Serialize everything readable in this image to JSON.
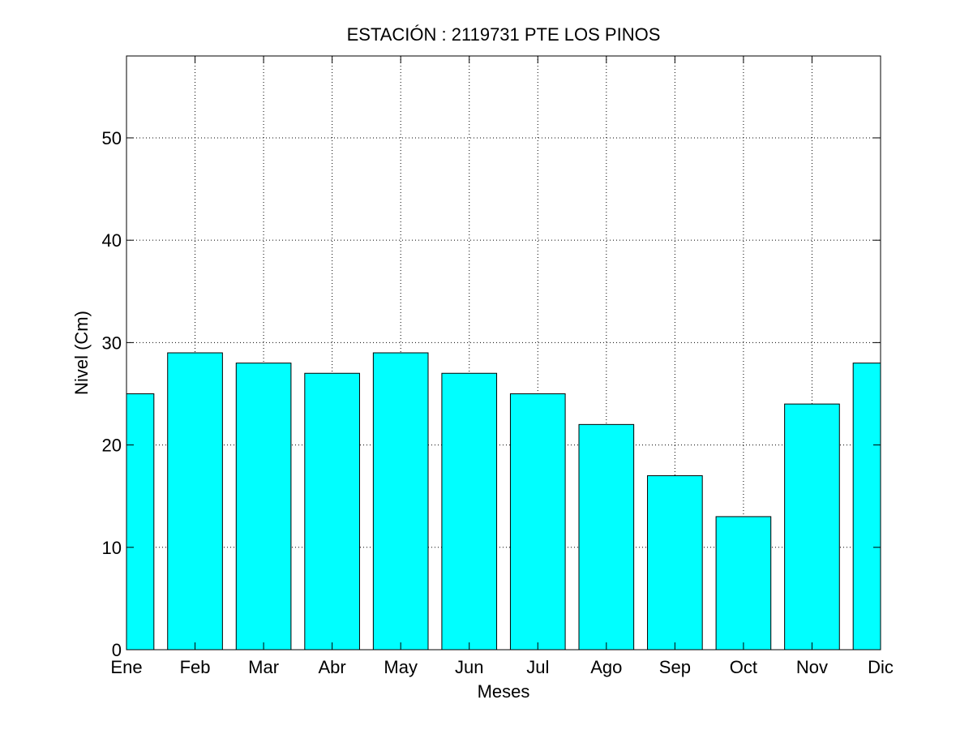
{
  "chart_data": {
    "type": "bar",
    "title": "ESTACIÓN :  2119731  PTE LOS PINOS",
    "xlabel": "Meses",
    "ylabel": "Nivel (Cm)",
    "categories": [
      "Ene",
      "Feb",
      "Mar",
      "Abr",
      "May",
      "Jun",
      "Jul",
      "Ago",
      "Sep",
      "Oct",
      "Nov",
      "Dic"
    ],
    "values": [
      25,
      29,
      28,
      27,
      29,
      27,
      25,
      22,
      17,
      13,
      24,
      28
    ],
    "ylim": [
      0,
      58
    ],
    "yticks": [
      0,
      10,
      20,
      30,
      40,
      50
    ],
    "grid": true,
    "bar_color": "#00ffff",
    "edge_color": "#000000"
  }
}
